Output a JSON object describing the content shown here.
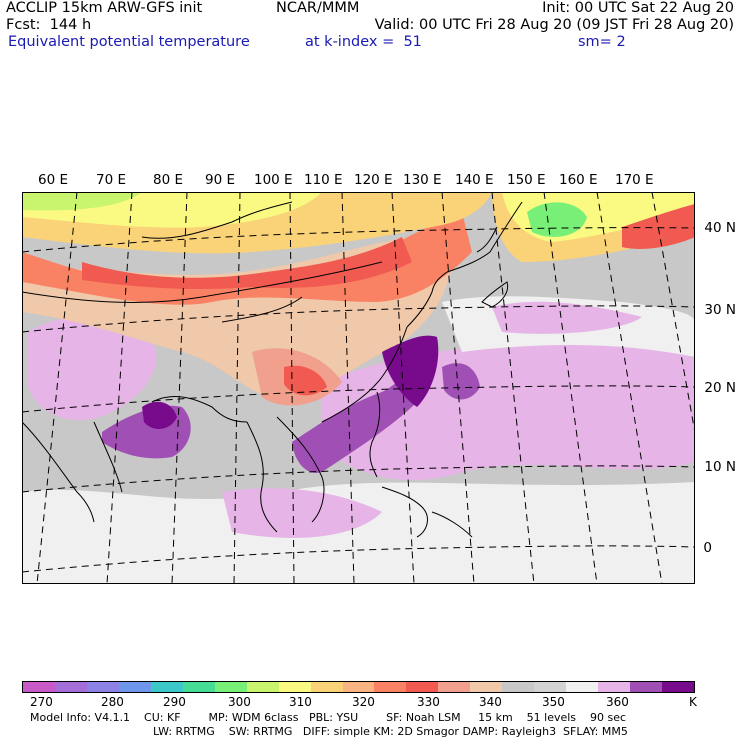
{
  "header": {
    "line1_left": "ACCLIP 15km ARW-GFS init",
    "line1_center": "NCAR/MMM",
    "line1_right": "Init: 00 UTC Sat 22 Aug 20",
    "line2_left": "Fcst:  144 h",
    "line2_right": "Valid: 00 UTC Fri 28 Aug 20 (09 JST Fri 28 Aug 20)",
    "line3_left": "Equivalent potential temperature",
    "line3_center": "at k-index =  51",
    "line3_right": "sm= 2"
  },
  "map": {
    "lon_labels": [
      "60 E",
      "70 E",
      "80 E",
      "90 E",
      "100 E",
      "110 E",
      "120 E",
      "130 E",
      "140 E",
      "150 E",
      "160 E",
      "170 E"
    ],
    "lat_labels": [
      "40 N",
      "30 N",
      "20 N",
      "10 N",
      "0"
    ]
  },
  "colorbar": {
    "colors": [
      "#c85ac8",
      "#a46ed8",
      "#8c82e6",
      "#6e96ea",
      "#3cc8c8",
      "#46dc96",
      "#78f078",
      "#c8f46e",
      "#fafa82",
      "#fad278",
      "#fab482",
      "#fa8264",
      "#f05a50",
      "#f0a08c",
      "#f0c8aa",
      "#c8c8c8",
      "#d2d2d2",
      "#f0f0f0",
      "#e6b4e6",
      "#a050b4",
      "#780a8c"
    ],
    "ticks": [
      "270",
      "280",
      "290",
      "300",
      "310",
      "320",
      "330",
      "340",
      "350",
      "360"
    ],
    "unit": "K"
  },
  "footer": {
    "line1": "Model Info: V4.1.1    CU: KF        MP: WDM 6class   PBL: YSU        SF: Noah LSM     15 km    51 levels    90 sec",
    "line2": "LW: RRTMG    SW: RRTMG   DIFF: simple KM: 2D Smagor DAMP: Rayleigh3  SFLAY: MM5"
  }
}
